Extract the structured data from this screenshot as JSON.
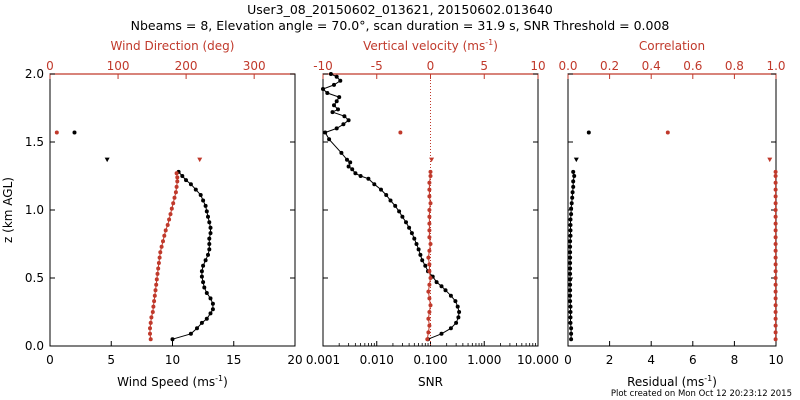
{
  "header": {
    "title_line1": "User3_08_20150602_013621, 20150602.013640",
    "title_line2": "Nbeams = 8, Elevation angle = 70.0°, scan duration = 31.9 s, SNR Threshold = 0.008"
  },
  "footer": {
    "created": "Plot created on Mon Oct 12 20:23:12 2015"
  },
  "colors": {
    "black": "#000000",
    "red": "#c0392b"
  },
  "chart_data": [
    {
      "type": "scatter",
      "name": "wind-panel",
      "ylabel": "z (km AGL)",
      "ylim": [
        0,
        2
      ],
      "yticks": [
        0.0,
        0.5,
        1.0,
        1.5,
        2.0
      ],
      "ytick_labels": [
        "0.0",
        "0.5",
        "1.0",
        "1.5",
        "2.0"
      ],
      "xlabel_bottom": "Wind Speed (ms",
      "xlabel_bottom_sup": "-1",
      "xlabel_bottom_tail": ")",
      "xlim_bottom": [
        0,
        20
      ],
      "xticks_bottom": [
        "0",
        "5",
        "10",
        "15",
        "20"
      ],
      "xlabel_top": "Wind Direction (deg)",
      "xlim_top": [
        0,
        360
      ],
      "xticks_top": [
        "0",
        "100",
        "200",
        "300"
      ],
      "xticks_top_values": [
        0,
        100,
        200,
        300
      ],
      "series": [
        {
          "axis": "bottom",
          "color": "#000000",
          "connect": true,
          "points": [
            [
              10.0,
              0.05
            ],
            [
              11.5,
              0.09
            ],
            [
              12.0,
              0.13
            ],
            [
              12.4,
              0.17
            ],
            [
              12.8,
              0.2
            ],
            [
              13.1,
              0.24
            ],
            [
              13.3,
              0.27
            ],
            [
              13.3,
              0.31
            ],
            [
              13.1,
              0.35
            ],
            [
              12.8,
              0.39
            ],
            [
              12.6,
              0.43
            ],
            [
              12.5,
              0.47
            ],
            [
              12.4,
              0.51
            ],
            [
              12.4,
              0.55
            ],
            [
              12.5,
              0.59
            ],
            [
              12.7,
              0.63
            ],
            [
              12.9,
              0.67
            ],
            [
              13.0,
              0.71
            ],
            [
              13.0,
              0.75
            ],
            [
              13.0,
              0.79
            ],
            [
              13.1,
              0.83
            ],
            [
              13.1,
              0.87
            ],
            [
              13.0,
              0.91
            ],
            [
              12.9,
              0.95
            ],
            [
              12.8,
              0.99
            ],
            [
              12.7,
              1.03
            ],
            [
              12.5,
              1.07
            ],
            [
              12.3,
              1.11
            ],
            [
              11.9,
              1.15
            ],
            [
              11.5,
              1.19
            ],
            [
              11.1,
              1.22
            ],
            [
              10.8,
              1.25
            ],
            [
              10.5,
              1.28
            ]
          ]
        },
        {
          "axis": "bottom",
          "color": "#000000",
          "connect": false,
          "points": [
            [
              2.0,
              1.57
            ]
          ]
        },
        {
          "axis": "top",
          "color": "#c0392b",
          "connect": true,
          "points": [
            [
              148,
              0.05
            ],
            [
              147,
              0.09
            ],
            [
              147,
              0.13
            ],
            [
              148,
              0.17
            ],
            [
              149,
              0.21
            ],
            [
              151,
              0.25
            ],
            [
              152,
              0.29
            ],
            [
              153,
              0.33
            ],
            [
              154,
              0.37
            ],
            [
              155,
              0.41
            ],
            [
              156,
              0.45
            ],
            [
              157,
              0.49
            ],
            [
              158,
              0.53
            ],
            [
              159,
              0.57
            ],
            [
              160,
              0.61
            ],
            [
              161,
              0.65
            ],
            [
              162,
              0.69
            ],
            [
              164,
              0.73
            ],
            [
              166,
              0.77
            ],
            [
              168,
              0.81
            ],
            [
              170,
              0.85
            ],
            [
              173,
              0.89
            ],
            [
              175,
              0.93
            ],
            [
              177,
              0.97
            ],
            [
              179,
              1.01
            ],
            [
              181,
              1.05
            ],
            [
              183,
              1.09
            ],
            [
              185,
              1.13
            ],
            [
              186,
              1.17
            ],
            [
              187,
              1.21
            ],
            [
              187,
              1.24
            ],
            [
              186,
              1.27
            ]
          ]
        },
        {
          "axis": "top",
          "color": "#c0392b",
          "connect": false,
          "points": [
            [
              10,
              1.57
            ]
          ]
        },
        {
          "axis": "top",
          "color": "#000000",
          "connect": false,
          "marker": "tri",
          "points": [
            [
              84,
              1.37
            ]
          ]
        },
        {
          "axis": "top",
          "color": "#c0392b",
          "connect": false,
          "marker": "tri",
          "points": [
            [
              220,
              1.37
            ]
          ]
        }
      ]
    },
    {
      "type": "line",
      "name": "velocity-snr-panel",
      "xscale_bottom": "log",
      "xlabel_bottom": "SNR",
      "xlim_bottom": [
        0.001,
        10
      ],
      "xticks_bottom": [
        "0.001",
        "0.010",
        "0.100",
        "1.000",
        "10.000"
      ],
      "xlabel_top": "Vertical velocity (ms",
      "xlabel_top_sup": "-1",
      "xlabel_top_tail": ")",
      "xlim_top": [
        -10,
        10
      ],
      "xticks_top": [
        "-10",
        "-5",
        "0",
        "5",
        "10"
      ],
      "xticks_top_values": [
        -10,
        -5,
        0,
        5,
        10
      ],
      "reference_line_top_x": 0,
      "series": [
        {
          "axis": "bottom",
          "color": "#000000",
          "connect": true,
          "points": [
            [
              0.09,
              0.05
            ],
            [
              0.16,
              0.09
            ],
            [
              0.24,
              0.13
            ],
            [
              0.3,
              0.17
            ],
            [
              0.33,
              0.21
            ],
            [
              0.34,
              0.25
            ],
            [
              0.32,
              0.29
            ],
            [
              0.29,
              0.33
            ],
            [
              0.24,
              0.37
            ],
            [
              0.19,
              0.41
            ],
            [
              0.16,
              0.44
            ],
            [
              0.13,
              0.47
            ],
            [
              0.11,
              0.51
            ],
            [
              0.09,
              0.55
            ],
            [
              0.08,
              0.59
            ],
            [
              0.07,
              0.63
            ],
            [
              0.065,
              0.67
            ],
            [
              0.06,
              0.71
            ],
            [
              0.055,
              0.75
            ],
            [
              0.05,
              0.79
            ],
            [
              0.045,
              0.83
            ],
            [
              0.04,
              0.87
            ],
            [
              0.035,
              0.91
            ],
            [
              0.03,
              0.95
            ],
            [
              0.026,
              0.99
            ],
            [
              0.022,
              1.03
            ],
            [
              0.018,
              1.07
            ],
            [
              0.015,
              1.11
            ],
            [
              0.012,
              1.15
            ],
            [
              0.009,
              1.19
            ],
            [
              0.007,
              1.23
            ],
            [
              0.005,
              1.25
            ],
            [
              0.004,
              1.27
            ],
            [
              0.0035,
              1.3
            ],
            [
              0.003,
              1.32
            ],
            [
              0.0032,
              1.35
            ],
            [
              0.0028,
              1.37
            ],
            [
              0.0022,
              1.42
            ],
            [
              0.0013,
              1.52
            ],
            [
              0.0011,
              1.57
            ],
            [
              0.0018,
              1.6
            ],
            [
              0.0024,
              1.63
            ],
            [
              0.003,
              1.66
            ],
            [
              0.0025,
              1.69
            ],
            [
              0.0015,
              1.72
            ],
            [
              0.0019,
              1.74
            ],
            [
              0.0016,
              1.77
            ],
            [
              0.0018,
              1.8
            ],
            [
              0.002,
              1.83
            ],
            [
              0.0012,
              1.86
            ],
            [
              0.001,
              1.89
            ],
            [
              0.0016,
              1.92
            ],
            [
              0.0021,
              1.95
            ],
            [
              0.0018,
              1.98
            ],
            [
              0.0014,
              2.0
            ]
          ]
        },
        {
          "axis": "top",
          "color": "#c0392b",
          "connect": true,
          "points": [
            [
              -0.3,
              0.05
            ],
            [
              -0.2,
              0.1
            ],
            [
              -0.1,
              0.15
            ],
            [
              -0.2,
              0.2
            ],
            [
              -0.1,
              0.25
            ],
            [
              0.0,
              0.3
            ],
            [
              -0.1,
              0.35
            ],
            [
              -0.2,
              0.4
            ],
            [
              -0.1,
              0.45
            ],
            [
              0.0,
              0.5
            ],
            [
              -0.1,
              0.55
            ],
            [
              -0.1,
              0.6
            ],
            [
              -0.2,
              0.65
            ],
            [
              -0.1,
              0.7
            ],
            [
              0.0,
              0.75
            ],
            [
              -0.1,
              0.8
            ],
            [
              -0.1,
              0.85
            ],
            [
              -0.1,
              0.9
            ],
            [
              -0.1,
              0.95
            ],
            [
              -0.1,
              1.0
            ],
            [
              0.0,
              1.05
            ],
            [
              -0.1,
              1.1
            ],
            [
              -0.1,
              1.15
            ],
            [
              -0.1,
              1.2
            ],
            [
              0.0,
              1.25
            ],
            [
              0.0,
              1.28
            ]
          ]
        },
        {
          "axis": "top",
          "color": "#c0392b",
          "connect": false,
          "points": [
            [
              -2.8,
              1.57
            ]
          ]
        },
        {
          "axis": "top",
          "color": "#c0392b",
          "connect": false,
          "marker": "tri",
          "points": [
            [
              0.1,
              1.37
            ]
          ]
        }
      ]
    },
    {
      "type": "scatter",
      "name": "residual-correlation-panel",
      "xlabel_bottom": "Residual (ms",
      "xlabel_bottom_sup": "-1",
      "xlabel_bottom_tail": ")",
      "xlim_bottom": [
        0,
        10
      ],
      "xticks_bottom": [
        "0",
        "2",
        "4",
        "6",
        "8",
        "10"
      ],
      "xlabel_top": "Correlation",
      "xlim_top": [
        0,
        1
      ],
      "xticks_top": [
        "0.0",
        "0.2",
        "0.4",
        "0.6",
        "0.8",
        "1.0"
      ],
      "xticks_top_values": [
        0.0,
        0.2,
        0.4,
        0.6,
        0.8,
        1.0
      ],
      "series": [
        {
          "axis": "bottom",
          "color": "#000000",
          "connect": true,
          "points": [
            [
              0.15,
              0.05
            ],
            [
              0.15,
              0.09
            ],
            [
              0.15,
              0.13
            ],
            [
              0.12,
              0.17
            ],
            [
              0.12,
              0.21
            ],
            [
              0.12,
              0.25
            ],
            [
              0.12,
              0.29
            ],
            [
              0.1,
              0.33
            ],
            [
              0.1,
              0.37
            ],
            [
              0.1,
              0.41
            ],
            [
              0.1,
              0.45
            ],
            [
              0.1,
              0.49
            ],
            [
              0.1,
              0.53
            ],
            [
              0.1,
              0.57
            ],
            [
              0.1,
              0.61
            ],
            [
              0.1,
              0.65
            ],
            [
              0.1,
              0.69
            ],
            [
              0.1,
              0.73
            ],
            [
              0.1,
              0.77
            ],
            [
              0.12,
              0.81
            ],
            [
              0.12,
              0.85
            ],
            [
              0.12,
              0.89
            ],
            [
              0.12,
              0.93
            ],
            [
              0.15,
              0.97
            ],
            [
              0.15,
              1.01
            ],
            [
              0.18,
              1.05
            ],
            [
              0.2,
              1.09
            ],
            [
              0.22,
              1.13
            ],
            [
              0.25,
              1.17
            ],
            [
              0.25,
              1.21
            ],
            [
              0.3,
              1.25
            ],
            [
              0.25,
              1.28
            ]
          ]
        },
        {
          "axis": "bottom",
          "color": "#000000",
          "connect": false,
          "points": [
            [
              1.0,
              1.57
            ]
          ]
        },
        {
          "axis": "bottom",
          "color": "#000000",
          "connect": false,
          "marker": "tri",
          "points": [
            [
              0.4,
              1.37
            ]
          ]
        },
        {
          "axis": "top",
          "color": "#c0392b",
          "connect": true,
          "points": [
            [
              0.998,
              0.05
            ],
            [
              0.998,
              0.1
            ],
            [
              0.998,
              0.15
            ],
            [
              0.998,
              0.2
            ],
            [
              0.998,
              0.25
            ],
            [
              0.998,
              0.3
            ],
            [
              0.998,
              0.35
            ],
            [
              0.998,
              0.4
            ],
            [
              0.998,
              0.45
            ],
            [
              0.998,
              0.5
            ],
            [
              0.998,
              0.55
            ],
            [
              0.998,
              0.6
            ],
            [
              0.998,
              0.65
            ],
            [
              0.998,
              0.7
            ],
            [
              0.998,
              0.75
            ],
            [
              0.998,
              0.8
            ],
            [
              0.998,
              0.85
            ],
            [
              0.998,
              0.9
            ],
            [
              0.998,
              0.95
            ],
            [
              0.998,
              1.0
            ],
            [
              0.998,
              1.05
            ],
            [
              0.998,
              1.1
            ],
            [
              0.998,
              1.15
            ],
            [
              0.998,
              1.2
            ],
            [
              0.998,
              1.25
            ],
            [
              0.998,
              1.28
            ]
          ]
        },
        {
          "axis": "top",
          "color": "#c0392b",
          "connect": false,
          "points": [
            [
              0.48,
              1.57
            ]
          ]
        },
        {
          "axis": "top",
          "color": "#c0392b",
          "connect": false,
          "marker": "tri",
          "points": [
            [
              0.97,
              1.37
            ]
          ]
        }
      ]
    }
  ]
}
